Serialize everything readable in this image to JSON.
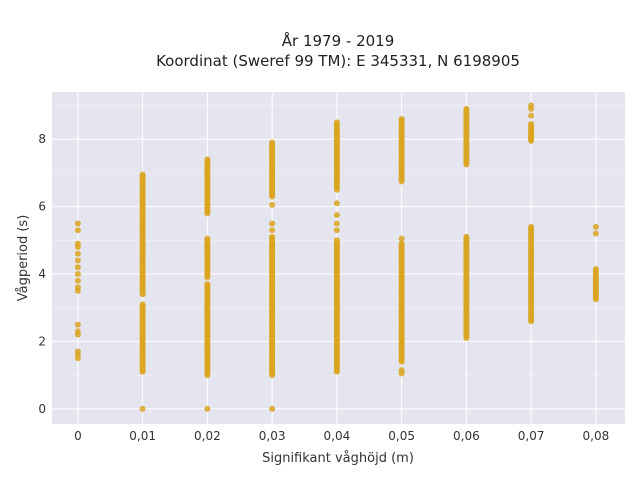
{
  "chart_data": {
    "type": "scatter",
    "title_lines": [
      "År 1979 - 2019",
      "Koordinat (Sweref 99 TM): E 345331, N 6198905"
    ],
    "xlabel": "Signifikant våghöjd (m)",
    "ylabel": "Vågperiod (s)",
    "x_ticks": [
      "0",
      "0,01",
      "0,02",
      "0,03",
      "0,04",
      "0,05",
      "0,06",
      "0,07",
      "0,08"
    ],
    "y_ticks": [
      "0",
      "2",
      "4",
      "6",
      "8"
    ],
    "xlim": [
      -0.004,
      0.0845
    ],
    "ylim": [
      -0.45,
      9.4
    ],
    "grid": true,
    "marker_color": "#DAA520",
    "background_color": "#E5E5F0",
    "clusters": [
      {
        "x": 0,
        "points": [
          1.5,
          1.6,
          1.7,
          2.2,
          2.3,
          2.5,
          3.5,
          3.6,
          3.8,
          4.0,
          4.2,
          4.4,
          4.6,
          4.8,
          4.9,
          5.3,
          5.5
        ],
        "ranges": []
      },
      {
        "x": 0.01,
        "points": [
          0.0
        ],
        "ranges": [
          [
            1.1,
            3.1
          ],
          [
            3.4,
            6.95
          ]
        ]
      },
      {
        "x": 0.02,
        "points": [
          0.0
        ],
        "ranges": [
          [
            1.0,
            3.7
          ],
          [
            3.9,
            5.05
          ],
          [
            5.8,
            7.4
          ]
        ]
      },
      {
        "x": 0.03,
        "points": [
          0.0,
          5.3,
          5.5,
          6.05
        ],
        "ranges": [
          [
            1.0,
            5.1
          ],
          [
            6.3,
            7.9
          ]
        ]
      },
      {
        "x": 0.04,
        "points": [
          5.3,
          5.5,
          5.75,
          6.1
        ],
        "ranges": [
          [
            1.1,
            5.0
          ],
          [
            6.5,
            8.5
          ]
        ]
      },
      {
        "x": 0.05,
        "points": [
          1.05,
          1.15,
          5.05
        ],
        "ranges": [
          [
            1.4,
            4.9
          ],
          [
            6.75,
            8.6
          ]
        ]
      },
      {
        "x": 0.06,
        "points": [],
        "ranges": [
          [
            2.1,
            5.1
          ],
          [
            7.25,
            8.9
          ]
        ]
      },
      {
        "x": 0.07,
        "points": [
          8.0,
          8.1,
          8.3,
          8.7,
          8.9,
          9.0
        ],
        "ranges": [
          [
            2.6,
            5.4
          ],
          [
            7.95,
            8.45
          ]
        ]
      },
      {
        "x": 0.08,
        "points": [
          5.2,
          5.4
        ],
        "ranges": [
          [
            3.25,
            4.15
          ]
        ]
      }
    ]
  }
}
